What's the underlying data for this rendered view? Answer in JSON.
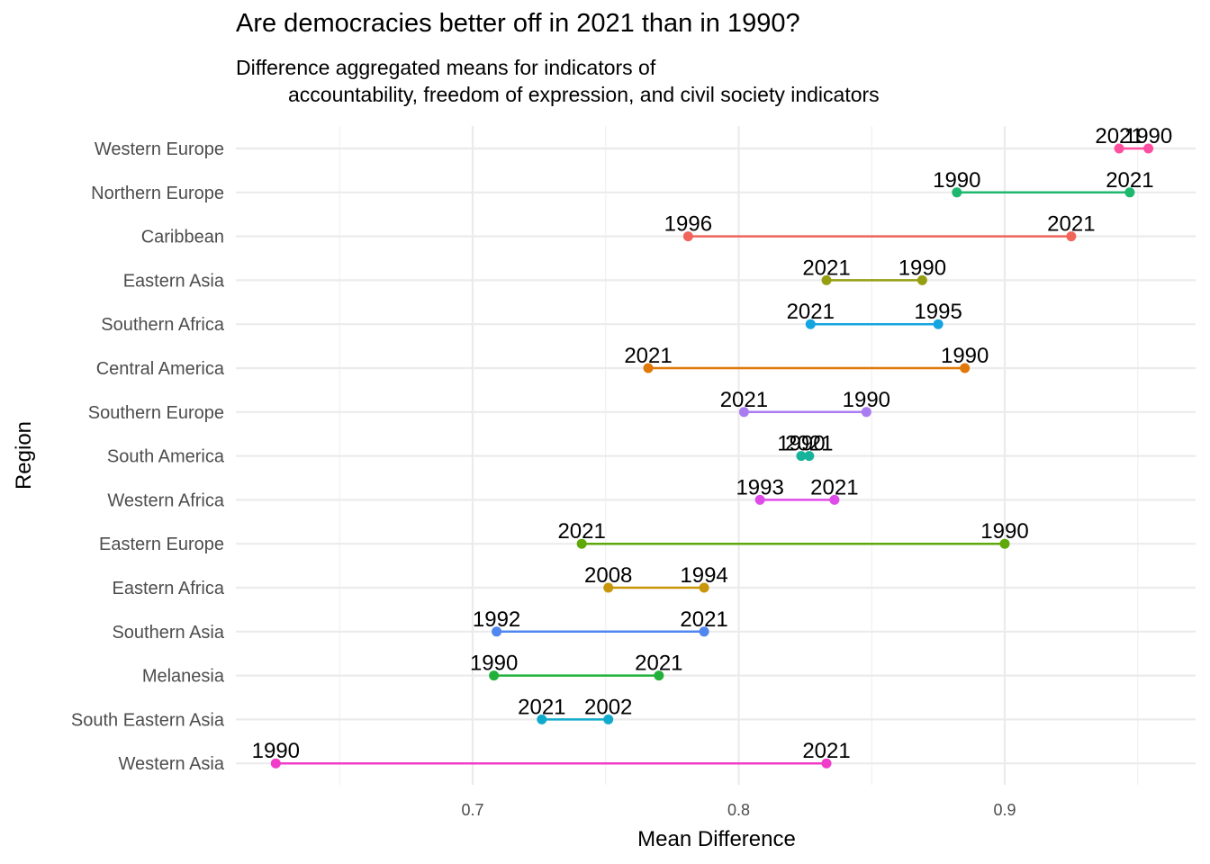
{
  "chart_data": {
    "type": "dumbbell",
    "title": "Are democracies better off in 2021 than in 1990?",
    "subtitle_line1": "Difference aggregated means for indicators of",
    "subtitle_line2": "accountability, freedom of expression, and civil society indicators",
    "xlabel": "Mean Difference",
    "ylabel": "Region",
    "xlim": [
      0.61,
      0.955
    ],
    "x_ticks": [
      0.7,
      0.8,
      0.9
    ],
    "grid": true,
    "series": [
      {
        "region": "Western Europe",
        "color": "#FF4FA0",
        "points": [
          {
            "label": "2021",
            "x": 0.943
          },
          {
            "label": "1990",
            "x": 0.954
          }
        ]
      },
      {
        "region": "Northern Europe",
        "color": "#1DB86E",
        "points": [
          {
            "label": "1990",
            "x": 0.882
          },
          {
            "label": "2021",
            "x": 0.947
          }
        ]
      },
      {
        "region": "Caribbean",
        "color": "#F0645A",
        "points": [
          {
            "label": "1996",
            "x": 0.781
          },
          {
            "label": "2021",
            "x": 0.925
          }
        ]
      },
      {
        "region": "Eastern Asia",
        "color": "#969E12",
        "points": [
          {
            "label": "2021",
            "x": 0.833
          },
          {
            "label": "1990",
            "x": 0.869
          }
        ]
      },
      {
        "region": "Southern Africa",
        "color": "#14A5E0",
        "points": [
          {
            "label": "2021",
            "x": 0.827
          },
          {
            "label": "1995",
            "x": 0.875
          }
        ]
      },
      {
        "region": "Central America",
        "color": "#E0780A",
        "points": [
          {
            "label": "2021",
            "x": 0.766
          },
          {
            "label": "1990",
            "x": 0.885
          }
        ]
      },
      {
        "region": "Southern Europe",
        "color": "#A97DF0",
        "points": [
          {
            "label": "2021",
            "x": 0.802
          },
          {
            "label": "1990",
            "x": 0.848
          }
        ]
      },
      {
        "region": "South America",
        "color": "#15B49A",
        "points": [
          {
            "label": "1990",
            "x": 0.8235
          },
          {
            "label": "2021",
            "x": 0.8265
          }
        ]
      },
      {
        "region": "Western Africa",
        "color": "#DE4BE8",
        "points": [
          {
            "label": "1993",
            "x": 0.808
          },
          {
            "label": "2021",
            "x": 0.836
          }
        ]
      },
      {
        "region": "Eastern Europe",
        "color": "#5EA80A",
        "points": [
          {
            "label": "2021",
            "x": 0.741
          },
          {
            "label": "1990",
            "x": 0.9
          }
        ]
      },
      {
        "region": "Eastern Africa",
        "color": "#C9950A",
        "points": [
          {
            "label": "2008",
            "x": 0.751
          },
          {
            "label": "1994",
            "x": 0.787
          }
        ]
      },
      {
        "region": "Southern Asia",
        "color": "#4F86F0",
        "points": [
          {
            "label": "1992",
            "x": 0.709
          },
          {
            "label": "2021",
            "x": 0.787
          }
        ]
      },
      {
        "region": "Melanesia",
        "color": "#22B03A",
        "points": [
          {
            "label": "1990",
            "x": 0.708
          },
          {
            "label": "2021",
            "x": 0.77
          }
        ]
      },
      {
        "region": "South Eastern Asia",
        "color": "#12AACC",
        "points": [
          {
            "label": "2021",
            "x": 0.726
          },
          {
            "label": "2002",
            "x": 0.751
          }
        ]
      },
      {
        "region": "Western Asia",
        "color": "#F03CC8",
        "points": [
          {
            "label": "1990",
            "x": 0.626
          },
          {
            "label": "2021",
            "x": 0.833
          }
        ]
      }
    ]
  }
}
